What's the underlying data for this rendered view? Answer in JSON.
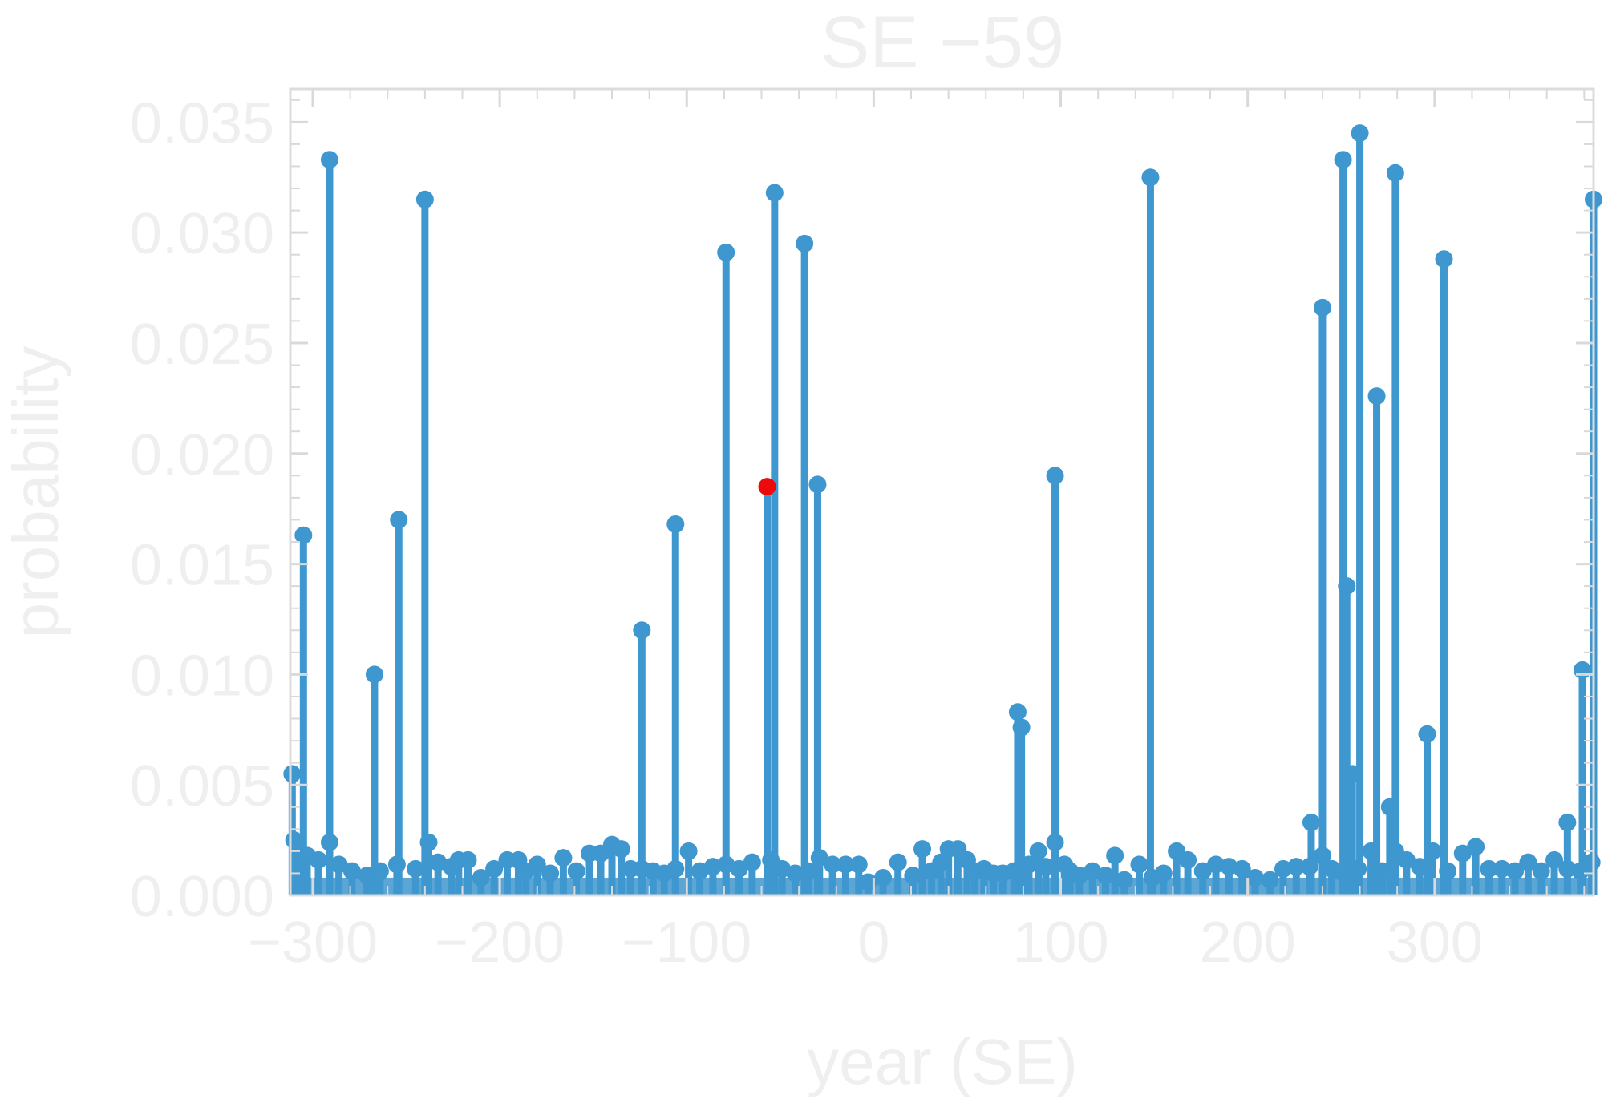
{
  "colors": {
    "series": "#3f97cf",
    "highlight": "#ee0a0a",
    "text": "#efefef",
    "frame": "#dcdcdc",
    "tick": "#d9d9d9"
  },
  "chart_data": {
    "type": "scatter",
    "style": "stem",
    "title": "SE −59",
    "xlabel": "year (SE)",
    "ylabel": "probability",
    "xlim": [
      -312,
      385
    ],
    "ylim": [
      0,
      0.0365
    ],
    "x_ticks": [
      -300,
      -200,
      -100,
      0,
      100,
      200,
      300
    ],
    "x_tick_labels": [
      "−300",
      "−200",
      "−100",
      "0",
      "100",
      "200",
      "300"
    ],
    "y_ticks": [
      0.0,
      0.005,
      0.01,
      0.015,
      0.02,
      0.025,
      0.03,
      0.035
    ],
    "y_tick_labels": [
      "0.000",
      "0.005",
      "0.010",
      "0.015",
      "0.020",
      "0.025",
      "0.030",
      "0.035"
    ],
    "grid": false,
    "legend": "none",
    "series": [
      {
        "x": [
          -311,
          -310,
          -308,
          -303,
          -297,
          -291,
          -286,
          -279,
          -271,
          -264,
          -255,
          -245,
          -238,
          -233,
          -226,
          -222,
          -217,
          -210,
          -203,
          -196,
          -190,
          -186,
          -180,
          -173,
          -166,
          -159,
          -152,
          -146,
          -140,
          -135,
          -130,
          -124,
          -118,
          -112,
          -106,
          -99,
          -93,
          -86,
          -79,
          -72,
          -65,
          -55,
          -49,
          -42,
          -35,
          -29,
          -22,
          -15,
          -8,
          -3,
          5,
          13,
          21,
          26,
          31,
          36,
          40,
          45,
          50,
          54,
          59,
          64,
          69,
          75,
          80,
          83,
          88,
          92,
          97,
          102,
          105,
          110,
          117,
          124,
          129,
          134,
          142,
          149,
          155,
          162,
          168,
          176,
          183,
          190,
          197,
          204,
          212,
          219,
          226,
          233,
          240,
          245,
          251,
          259,
          266,
          272,
          279,
          285,
          292,
          299,
          307,
          315,
          322,
          329,
          336,
          343,
          350,
          357,
          364,
          371,
          378,
          384
        ],
        "y": [
          0.0055,
          0.0025,
          0.0019,
          0.0018,
          0.0016,
          0.0024,
          0.0014,
          0.0011,
          0.0009,
          0.0011,
          0.0014,
          0.0012,
          0.0024,
          0.0015,
          0.0013,
          0.0016,
          0.0016,
          0.0008,
          0.0012,
          0.0016,
          0.0016,
          0.0011,
          0.0014,
          0.001,
          0.0017,
          0.0011,
          0.0019,
          0.0019,
          0.0023,
          0.0021,
          0.0012,
          0.0012,
          0.0011,
          0.001,
          0.0012,
          0.002,
          0.0011,
          0.0013,
          0.0014,
          0.0012,
          0.0015,
          0.0016,
          0.0012,
          0.001,
          0.0011,
          0.0017,
          0.0014,
          0.0014,
          0.0014,
          0.0006,
          0.0008,
          0.0015,
          0.0009,
          0.0021,
          0.0011,
          0.0015,
          0.0021,
          0.0021,
          0.0016,
          0.0011,
          0.0012,
          0.001,
          0.001,
          0.0011,
          0.0012,
          0.0014,
          0.002,
          0.0013,
          0.0024,
          0.0014,
          0.0011,
          0.0009,
          0.0011,
          0.0009,
          0.0018,
          0.0007,
          0.0014,
          0.0008,
          0.001,
          0.002,
          0.0016,
          0.0011,
          0.0014,
          0.0013,
          0.0012,
          0.0008,
          0.0007,
          0.0012,
          0.0013,
          0.0013,
          0.0018,
          0.0012,
          0.001,
          0.0012,
          0.002,
          0.0011,
          0.002,
          0.0016,
          0.0013,
          0.002,
          0.0011,
          0.0019,
          0.0022,
          0.0012,
          0.0012,
          0.0011,
          0.0015,
          0.0011,
          0.0016,
          0.0012,
          0.0011,
          0.0015
        ],
        "y_comment": ""
      },
      {
        "x": [
          -305,
          -291,
          -267,
          -254,
          -240,
          -124,
          -106,
          -79,
          -53,
          -37,
          -30,
          77,
          79,
          97,
          148,
          234,
          240,
          251,
          253,
          256,
          260,
          269,
          276,
          279,
          296,
          305,
          371,
          379,
          385
        ],
        "y": [
          0.0163,
          0.0333,
          0.01,
          0.017,
          0.0315,
          0.012,
          0.0168,
          0.0291,
          0.0318,
          0.0295,
          0.0186,
          0.0083,
          0.0076,
          0.019,
          0.0325,
          0.0033,
          0.0266,
          0.0333,
          0.014,
          0.0055,
          0.0345,
          0.0226,
          0.004,
          0.0327,
          0.0073,
          0.0288,
          0.0033,
          0.0102,
          0.0315
        ]
      },
      {
        "x": [
          -57
        ],
        "y": [
          0.0185
        ],
        "highlight": true
      }
    ]
  }
}
